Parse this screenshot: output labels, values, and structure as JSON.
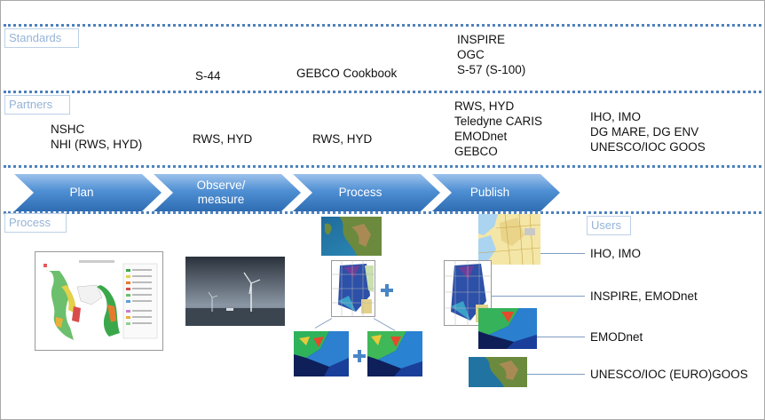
{
  "rows": {
    "standards_tag": "Standards",
    "partners_tag": "Partners",
    "process_tag": "Process",
    "users_tag": "Users"
  },
  "standards": {
    "observe": "S-44",
    "process": "GEBCO Cookbook",
    "publish": [
      "INSPIRE",
      "OGC",
      "S-57 (S-100)"
    ]
  },
  "partners": {
    "plan": [
      "NSHC",
      "NHI (RWS, HYD)"
    ],
    "observe": "RWS, HYD",
    "process": "RWS, HYD",
    "publish": [
      "RWS, HYD",
      "Teledyne CARIS",
      "EMODnet",
      "GEBCO"
    ],
    "users": [
      "IHO, IMO",
      "DG MARE, DG ENV",
      "UNESCO/IOC GOOS"
    ]
  },
  "steps": [
    {
      "label": "Plan"
    },
    {
      "label": "Observe/\nmeasure"
    },
    {
      "label": "Process"
    },
    {
      "label": "Publish"
    }
  ],
  "users": [
    "IHO, IMO",
    "INSPIRE, EMODnet",
    "EMODnet",
    "UNESCO/IOC (EURO)GOOS"
  ],
  "colors": {
    "dotted_divider": "#4f81bd",
    "tag_text": "#95b3d7",
    "chevron_top": "#9cc2ec",
    "chevron_bottom": "#2f6db3"
  }
}
